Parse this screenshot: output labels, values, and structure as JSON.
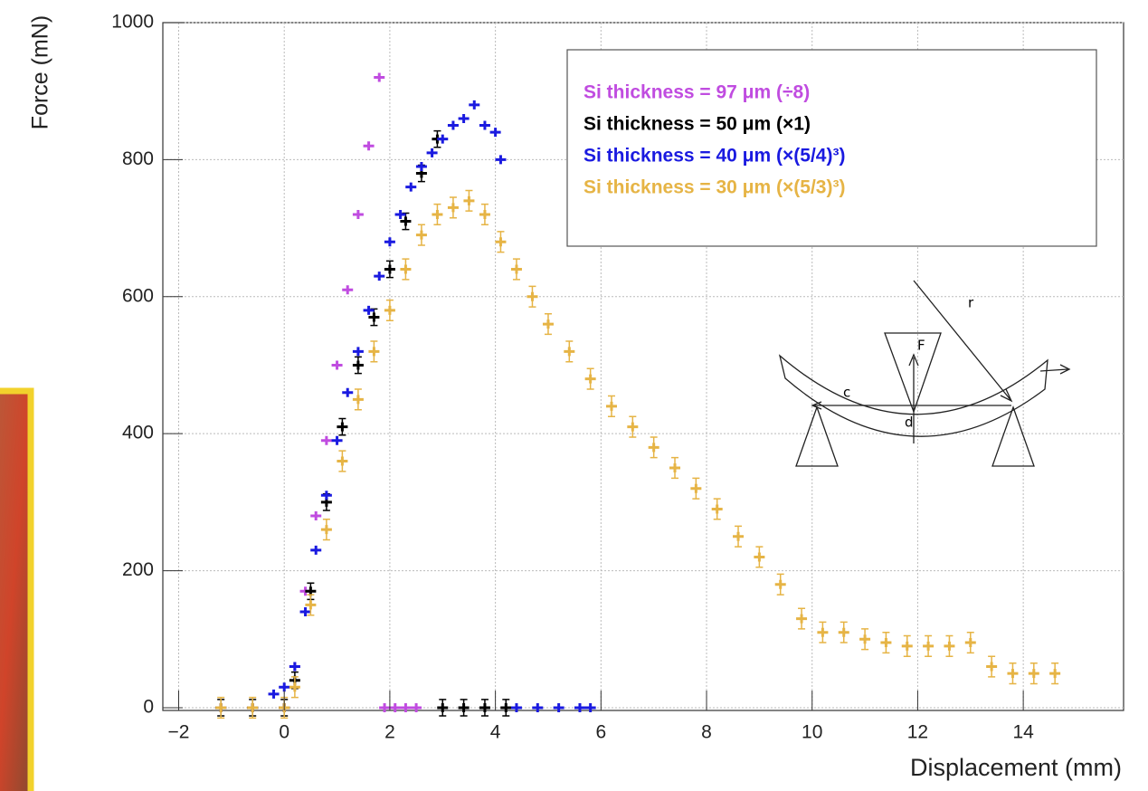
{
  "chart_data": {
    "type": "scatter",
    "x_label": "Displacement (mm)",
    "y_label": "Force (mN)",
    "xlim": [
      -2.3,
      15.9
    ],
    "ylim": [
      -4,
      1000
    ],
    "xticks": [
      {
        "value": -2,
        "label": "−2"
      },
      0,
      2,
      4,
      6,
      8,
      10,
      12,
      14
    ],
    "yticks": [
      0,
      200,
      400,
      600,
      800,
      1000
    ],
    "grid": true,
    "legend": "upper right",
    "annotations": [
      "r",
      "F",
      "c",
      "d"
    ],
    "series": [
      {
        "name": "Si thickness = 97 μm (÷8)",
        "color": "#c04ce0",
        "x": [
          -1.2,
          -0.6,
          0,
          0.2,
          0.4,
          0.6,
          0.8,
          1.0,
          1.2,
          1.4,
          1.6,
          1.8,
          1.9,
          2.1,
          2.3,
          2.5
        ],
        "values": [
          0,
          0,
          0,
          60,
          170,
          280,
          390,
          500,
          610,
          720,
          820,
          920,
          0,
          0,
          0,
          0
        ]
      },
      {
        "name": "Si thickness = 50 μm (×1)",
        "color": "#000000",
        "error": 12,
        "x": [
          -1.2,
          -0.6,
          0,
          0.2,
          0.5,
          0.8,
          1.1,
          1.4,
          1.7,
          2.0,
          2.3,
          2.6,
          2.9,
          3.0,
          3.4,
          3.8,
          4.2
        ],
        "values": [
          0,
          0,
          0,
          40,
          170,
          300,
          410,
          500,
          570,
          640,
          710,
          780,
          830,
          0,
          0,
          0,
          0
        ]
      },
      {
        "name": "Si thickness = 40 μm (×(5/4)³)",
        "color": "#1a1ae0",
        "x": [
          -0.2,
          0,
          0.2,
          0.4,
          0.6,
          0.8,
          1.0,
          1.2,
          1.4,
          1.6,
          1.8,
          2.0,
          2.2,
          2.4,
          2.6,
          2.8,
          3.0,
          3.2,
          3.4,
          3.6,
          3.8,
          4.0,
          4.1,
          4.4,
          4.8,
          5.2,
          5.6,
          5.8
        ],
        "values": [
          20,
          30,
          60,
          140,
          230,
          310,
          390,
          460,
          520,
          580,
          630,
          680,
          720,
          760,
          790,
          810,
          830,
          850,
          860,
          880,
          850,
          840,
          800,
          0,
          0,
          0,
          0,
          0
        ]
      },
      {
        "name": "Si thickness = 30 μm (×(5/3)³)",
        "color": "#e6b445",
        "error": 15,
        "x": [
          -1.2,
          -0.6,
          0,
          0.2,
          0.5,
          0.8,
          1.1,
          1.4,
          1.7,
          2.0,
          2.3,
          2.6,
          2.9,
          3.2,
          3.5,
          3.8,
          4.1,
          4.4,
          4.7,
          5.0,
          5.4,
          5.8,
          6.2,
          6.6,
          7.0,
          7.4,
          7.8,
          8.2,
          8.6,
          9.0,
          9.4,
          9.8,
          10.2,
          10.6,
          11.0,
          11.4,
          11.8,
          12.2,
          12.6,
          13.0,
          13.4,
          13.8,
          14.2,
          14.6
        ],
        "values": [
          0,
          0,
          0,
          30,
          150,
          260,
          360,
          450,
          520,
          580,
          640,
          690,
          720,
          730,
          740,
          720,
          680,
          640,
          600,
          560,
          520,
          480,
          440,
          410,
          380,
          350,
          320,
          290,
          250,
          220,
          180,
          130,
          110,
          110,
          100,
          95,
          90,
          90,
          90,
          95,
          60,
          50,
          50,
          50
        ]
      }
    ]
  }
}
